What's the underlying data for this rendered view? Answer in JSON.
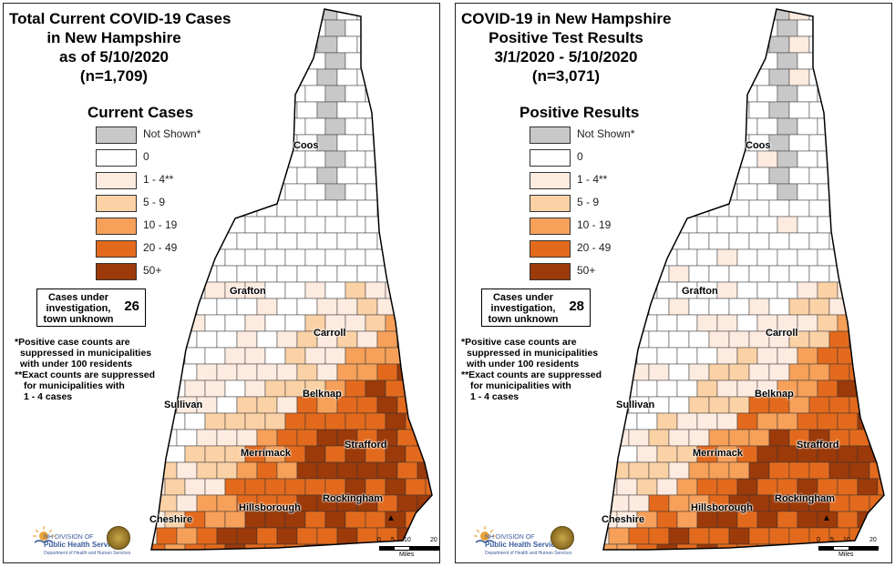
{
  "legend": {
    "title_left": "Current Cases",
    "title_right": "Positive Results",
    "items": [
      {
        "label": "Not Shown*",
        "color": "#c8c8c8"
      },
      {
        "label": "0",
        "color": "#ffffff"
      },
      {
        "label": "1 - 4**",
        "color": "#fdebe0"
      },
      {
        "label": "5 - 9",
        "color": "#fbd1a6"
      },
      {
        "label": "10 - 19",
        "color": "#f6a05a"
      },
      {
        "label": "20 - 49",
        "color": "#e36a1d"
      },
      {
        "label": "50+",
        "color": "#9c3a0a"
      }
    ]
  },
  "left_map": {
    "title_lines": [
      "Total Current COVID-19 Cases",
      "in New Hampshire",
      "as of 5/10/2020",
      "(n=1,709)"
    ],
    "unknown_label": "Cases under investigation, town unknown",
    "unknown_count": "26"
  },
  "right_map": {
    "title_lines": [
      "COVID-19 in New Hampshire",
      "Positive Test Results",
      "3/1/2020 - 5/10/2020",
      "(n=3,071)"
    ],
    "unknown_label": "Cases under investigation, town unknown",
    "unknown_count": "28"
  },
  "notes": {
    "note1": "*Positive case counts are",
    "note2": "suppressed in municipalities",
    "note3": "with under 100 residents",
    "note4": "**Exact counts are suppressed",
    "note5": "for municipalities with",
    "note6": "1 - 4 cases"
  },
  "counties": {
    "coos": "Coos",
    "grafton": "Grafton",
    "carroll": "Carroll",
    "belknap": "Belknap",
    "sullivan": "Sullivan",
    "merrimack": "Merrimack",
    "strafford": "Strafford",
    "rockingham": "Rockingham",
    "hillsborough": "Hillsborough",
    "cheshire": "Cheshire"
  },
  "logo": {
    "line1": "NH DIVISION OF",
    "line2": "Public Health Services",
    "line3": "Department of Health and Human Services"
  },
  "scale": {
    "ticks": [
      "0",
      "5",
      "10",
      "20"
    ],
    "unit": "Miles"
  },
  "icons": {
    "north_arrow": "north-arrow-icon",
    "seal": "state-seal-icon",
    "logo": "dphs-logo-icon"
  }
}
